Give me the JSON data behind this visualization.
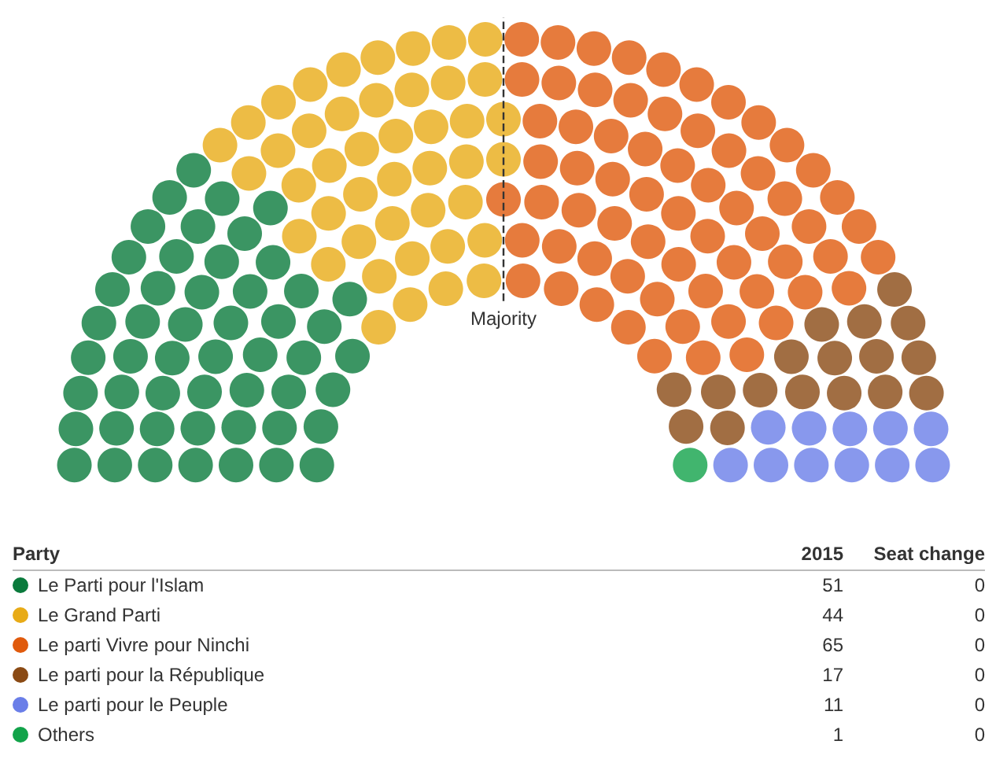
{
  "chart_data": {
    "type": "other",
    "legend_title": "Party",
    "categories": [
      "Le Parti pour l'Islam",
      "Le Grand Parti",
      "Le parti Vivre pour Ninchi",
      "Le parti pour la République",
      "Le parti pour le Peuple",
      "Others"
    ],
    "colors": [
      "#0a7a3c",
      "#e8ab17",
      "#e05a0c",
      "#8a4a14",
      "#6a7ee8",
      "#12a34a"
    ],
    "series": [
      {
        "name": "2015",
        "values": [
          51,
          44,
          65,
          17,
          11,
          1
        ]
      },
      {
        "name": "Seat change",
        "values": [
          0,
          0,
          0,
          0,
          0,
          0
        ]
      }
    ],
    "data_labels": true,
    "ref_lines": [
      {
        "axis": "x",
        "label": "Majority",
        "line_style": "dashed"
      }
    ]
  }
}
